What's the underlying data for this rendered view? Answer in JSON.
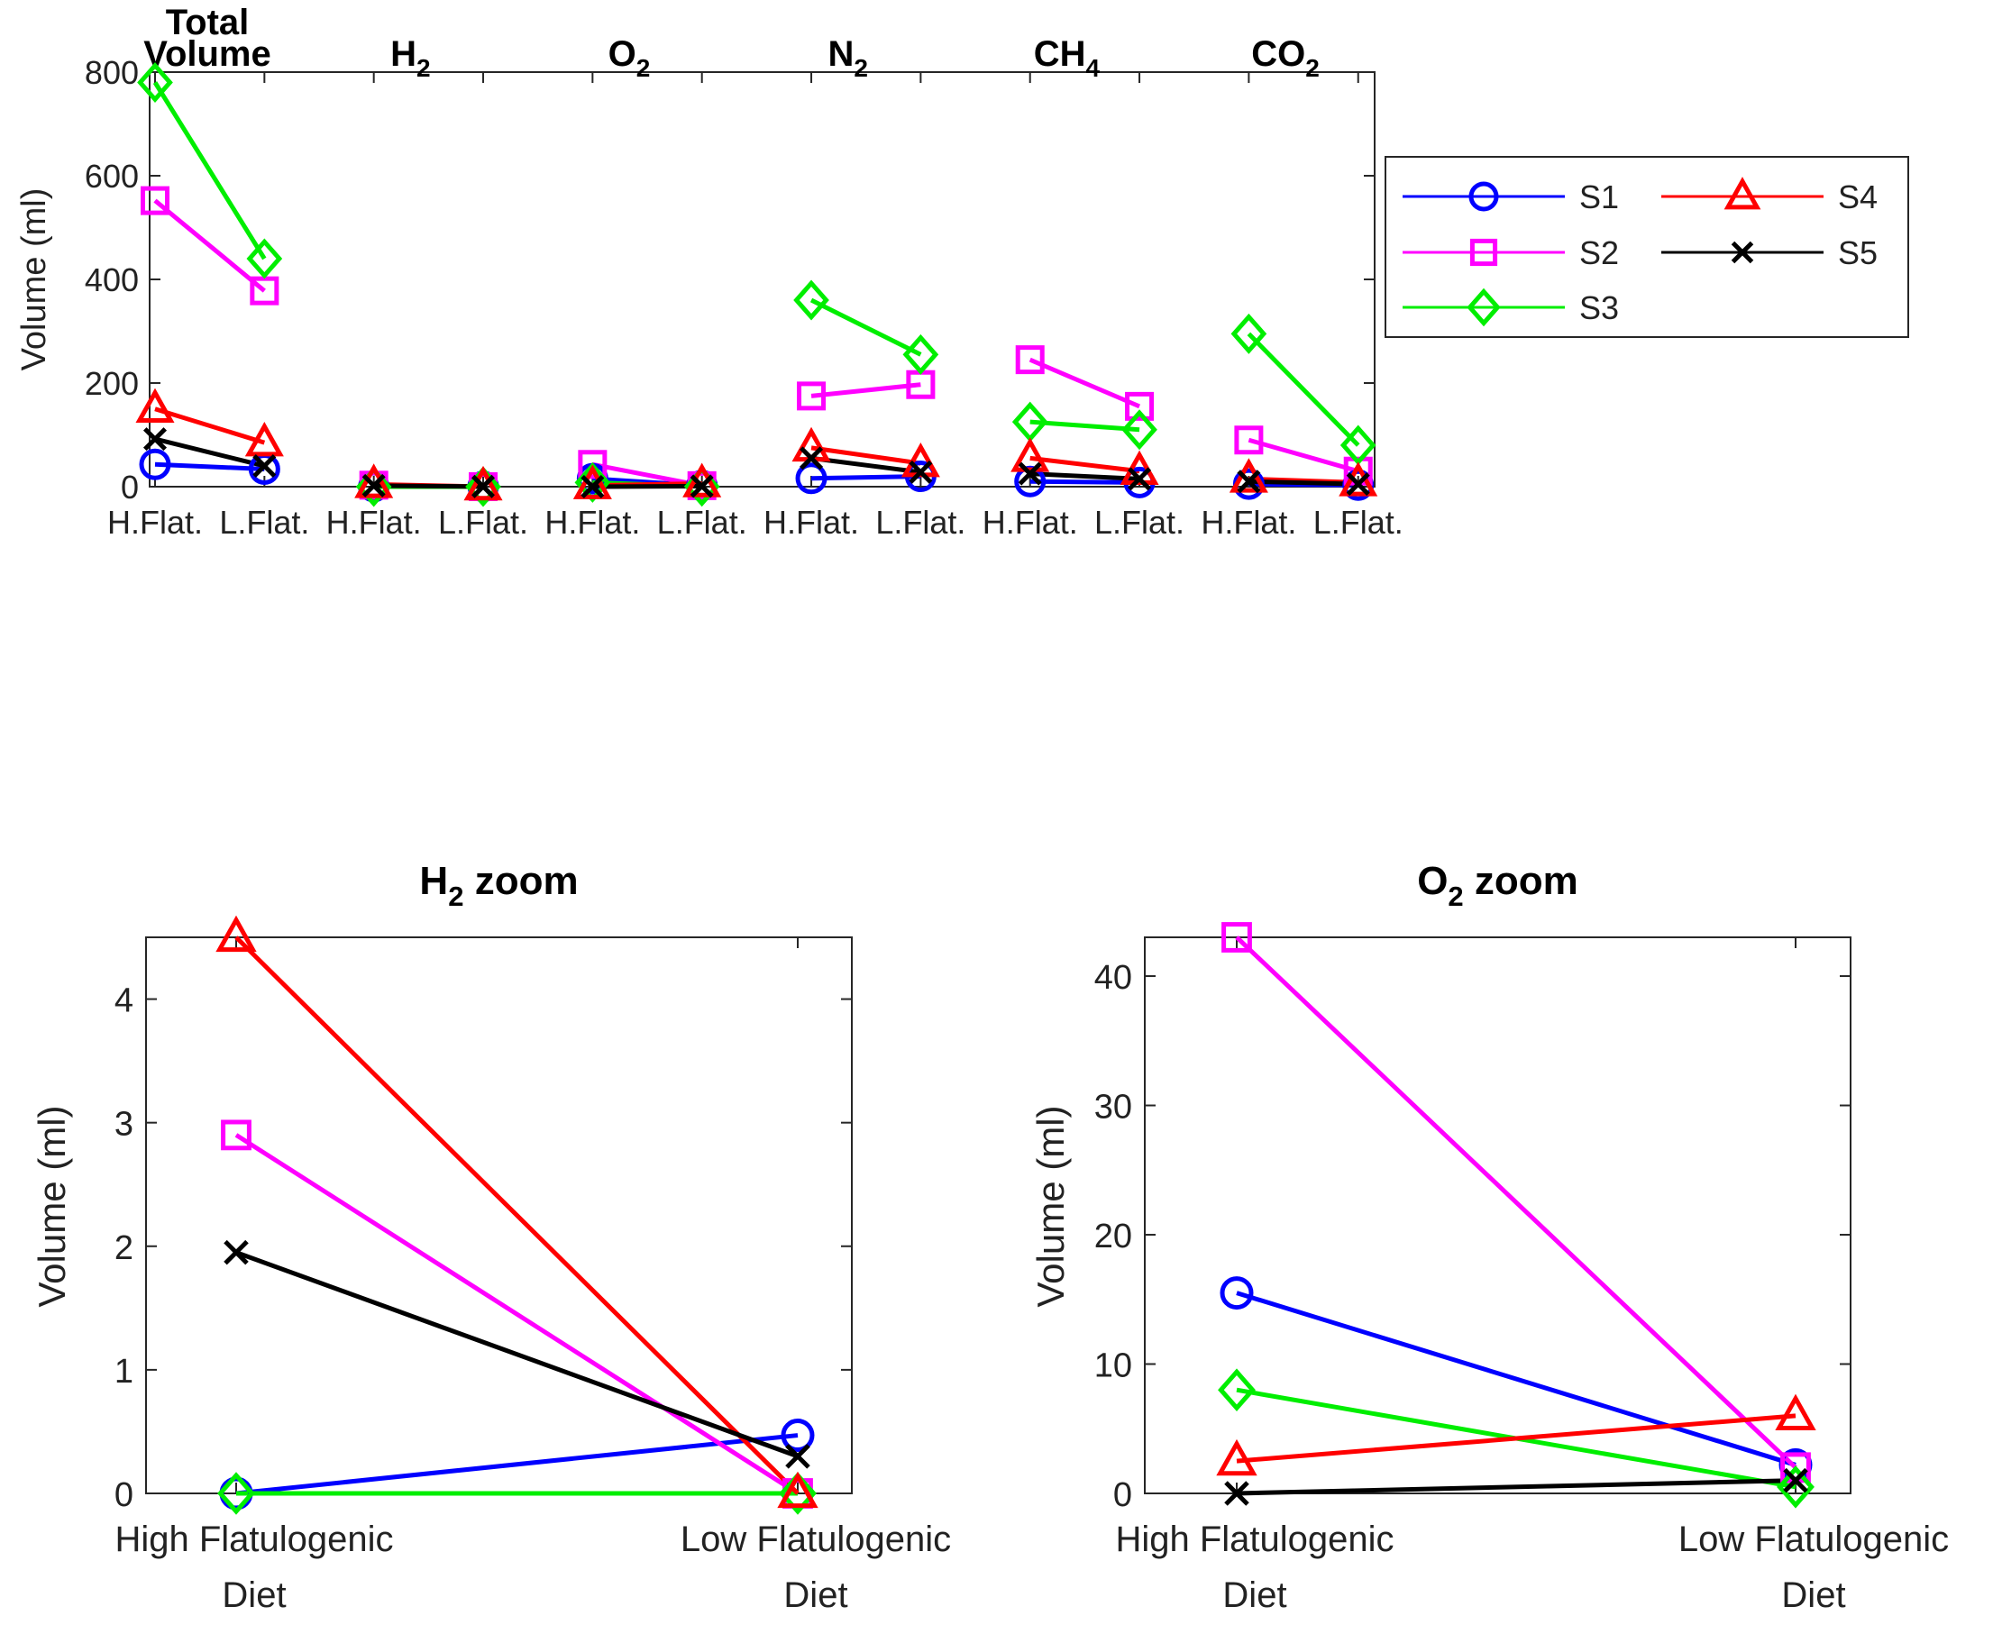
{
  "colors": {
    "S1": "#0000ff",
    "S2": "#ff00ff",
    "S3": "#00ee00",
    "S4": "#ff0000",
    "S5": "#000000"
  },
  "chart_data": [
    {
      "type": "line",
      "title": "",
      "group_titles": [
        "Total Volume",
        "H2",
        "O2",
        "N2",
        "CH4",
        "CO2"
      ],
      "categories": [
        "H.Flat.",
        "L.Flat.",
        "H.Flat.",
        "L.Flat.",
        "H.Flat.",
        "L.Flat.",
        "H.Flat.",
        "L.Flat.",
        "H.Flat.",
        "L.Flat.",
        "H.Flat.",
        "L.Flat."
      ],
      "xlabel": "",
      "ylabel": "Volume (ml)",
      "ylim": [
        0,
        800
      ],
      "yticks": [
        0,
        200,
        400,
        600,
        800
      ],
      "legend": "top-right",
      "legend_labels": [
        "S1",
        "S4",
        "S2",
        "S5",
        "S3"
      ],
      "series": [
        {
          "name": "S1",
          "marker": "circle",
          "values": [
            43,
            34,
            0,
            0.5,
            15.5,
            2.2,
            16,
            20,
            10,
            8,
            5,
            3
          ]
        },
        {
          "name": "S2",
          "marker": "square",
          "values": [
            552,
            378,
            2.9,
            0,
            43,
            2,
            175,
            197,
            245,
            155,
            90,
            30
          ]
        },
        {
          "name": "S3",
          "marker": "diamond",
          "values": [
            780,
            440,
            0,
            0,
            8,
            0.5,
            360,
            255,
            125,
            110,
            295,
            80
          ]
        },
        {
          "name": "S4",
          "marker": "triangle",
          "values": [
            150,
            85,
            4.5,
            0,
            2.5,
            6,
            75,
            45,
            55,
            30,
            15,
            8
          ]
        },
        {
          "name": "S5",
          "marker": "x",
          "values": [
            92,
            40,
            1.95,
            0.3,
            0,
            1,
            55,
            28,
            25,
            15,
            10,
            5
          ]
        }
      ]
    },
    {
      "type": "line",
      "title": "H2 zoom",
      "categories": [
        "High Flatulogenic Diet",
        "Low Flatulogenic Diet"
      ],
      "category_lines": [
        [
          "High Flatulogenic",
          "Diet"
        ],
        [
          "Low Flatulogenic",
          "Diet"
        ]
      ],
      "xlabel": "",
      "ylabel": "Volume (ml)",
      "ylim": [
        0,
        4.5
      ],
      "yticks": [
        0,
        1,
        2,
        3,
        4
      ],
      "series": [
        {
          "name": "S1",
          "marker": "circle",
          "values": [
            0,
            0.47
          ]
        },
        {
          "name": "S2",
          "marker": "square",
          "values": [
            2.9,
            0
          ]
        },
        {
          "name": "S3",
          "marker": "diamond",
          "values": [
            0,
            0
          ]
        },
        {
          "name": "S4",
          "marker": "triangle",
          "values": [
            4.5,
            0
          ]
        },
        {
          "name": "S5",
          "marker": "x",
          "values": [
            1.95,
            0.3
          ]
        }
      ]
    },
    {
      "type": "line",
      "title": "O2 zoom",
      "categories": [
        "High Flatulogenic Diet",
        "Low Flatulogenic Diet"
      ],
      "category_lines": [
        [
          "High Flatulogenic",
          "Diet"
        ],
        [
          "Low Flatulogenic",
          "Diet"
        ]
      ],
      "xlabel": "",
      "ylabel": "Volume (ml)",
      "ylim": [
        0,
        43
      ],
      "yticks": [
        0,
        10,
        20,
        30,
        40
      ],
      "series": [
        {
          "name": "S1",
          "marker": "circle",
          "values": [
            15.5,
            2.2
          ]
        },
        {
          "name": "S2",
          "marker": "square",
          "values": [
            43,
            2
          ]
        },
        {
          "name": "S3",
          "marker": "diamond",
          "values": [
            8,
            0.5
          ]
        },
        {
          "name": "S4",
          "marker": "triangle",
          "values": [
            2.5,
            6
          ]
        },
        {
          "name": "S5",
          "marker": "x",
          "values": [
            0,
            1
          ]
        }
      ]
    }
  ]
}
